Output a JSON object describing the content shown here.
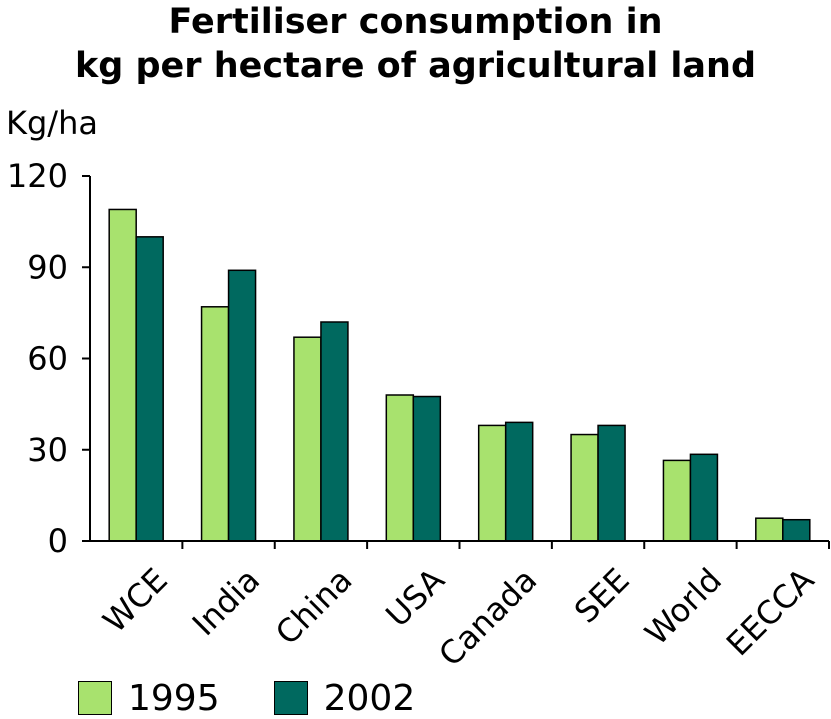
{
  "chart_data": {
    "type": "bar",
    "title_line1": "Fertiliser consumption in",
    "title_line2": "kg per hectare of agricultural land",
    "ylabel": "Kg/ha",
    "xlabel": "",
    "ylim": [
      0,
      120
    ],
    "yticks": [
      0,
      30,
      60,
      90,
      120
    ],
    "categories": [
      "WCE",
      "India",
      "China",
      "USA",
      "Canada",
      "SEE",
      "World",
      "EECCA"
    ],
    "series": [
      {
        "name": "1995",
        "color": "#a8e26e",
        "values": [
          109,
          77,
          67,
          48,
          38,
          35,
          26.5,
          7.5
        ]
      },
      {
        "name": "2002",
        "color": "#00695f",
        "values": [
          100,
          89,
          72,
          47.5,
          39,
          38,
          28.5,
          7
        ]
      }
    ],
    "legend_position": "bottom-left",
    "grid": false
  }
}
